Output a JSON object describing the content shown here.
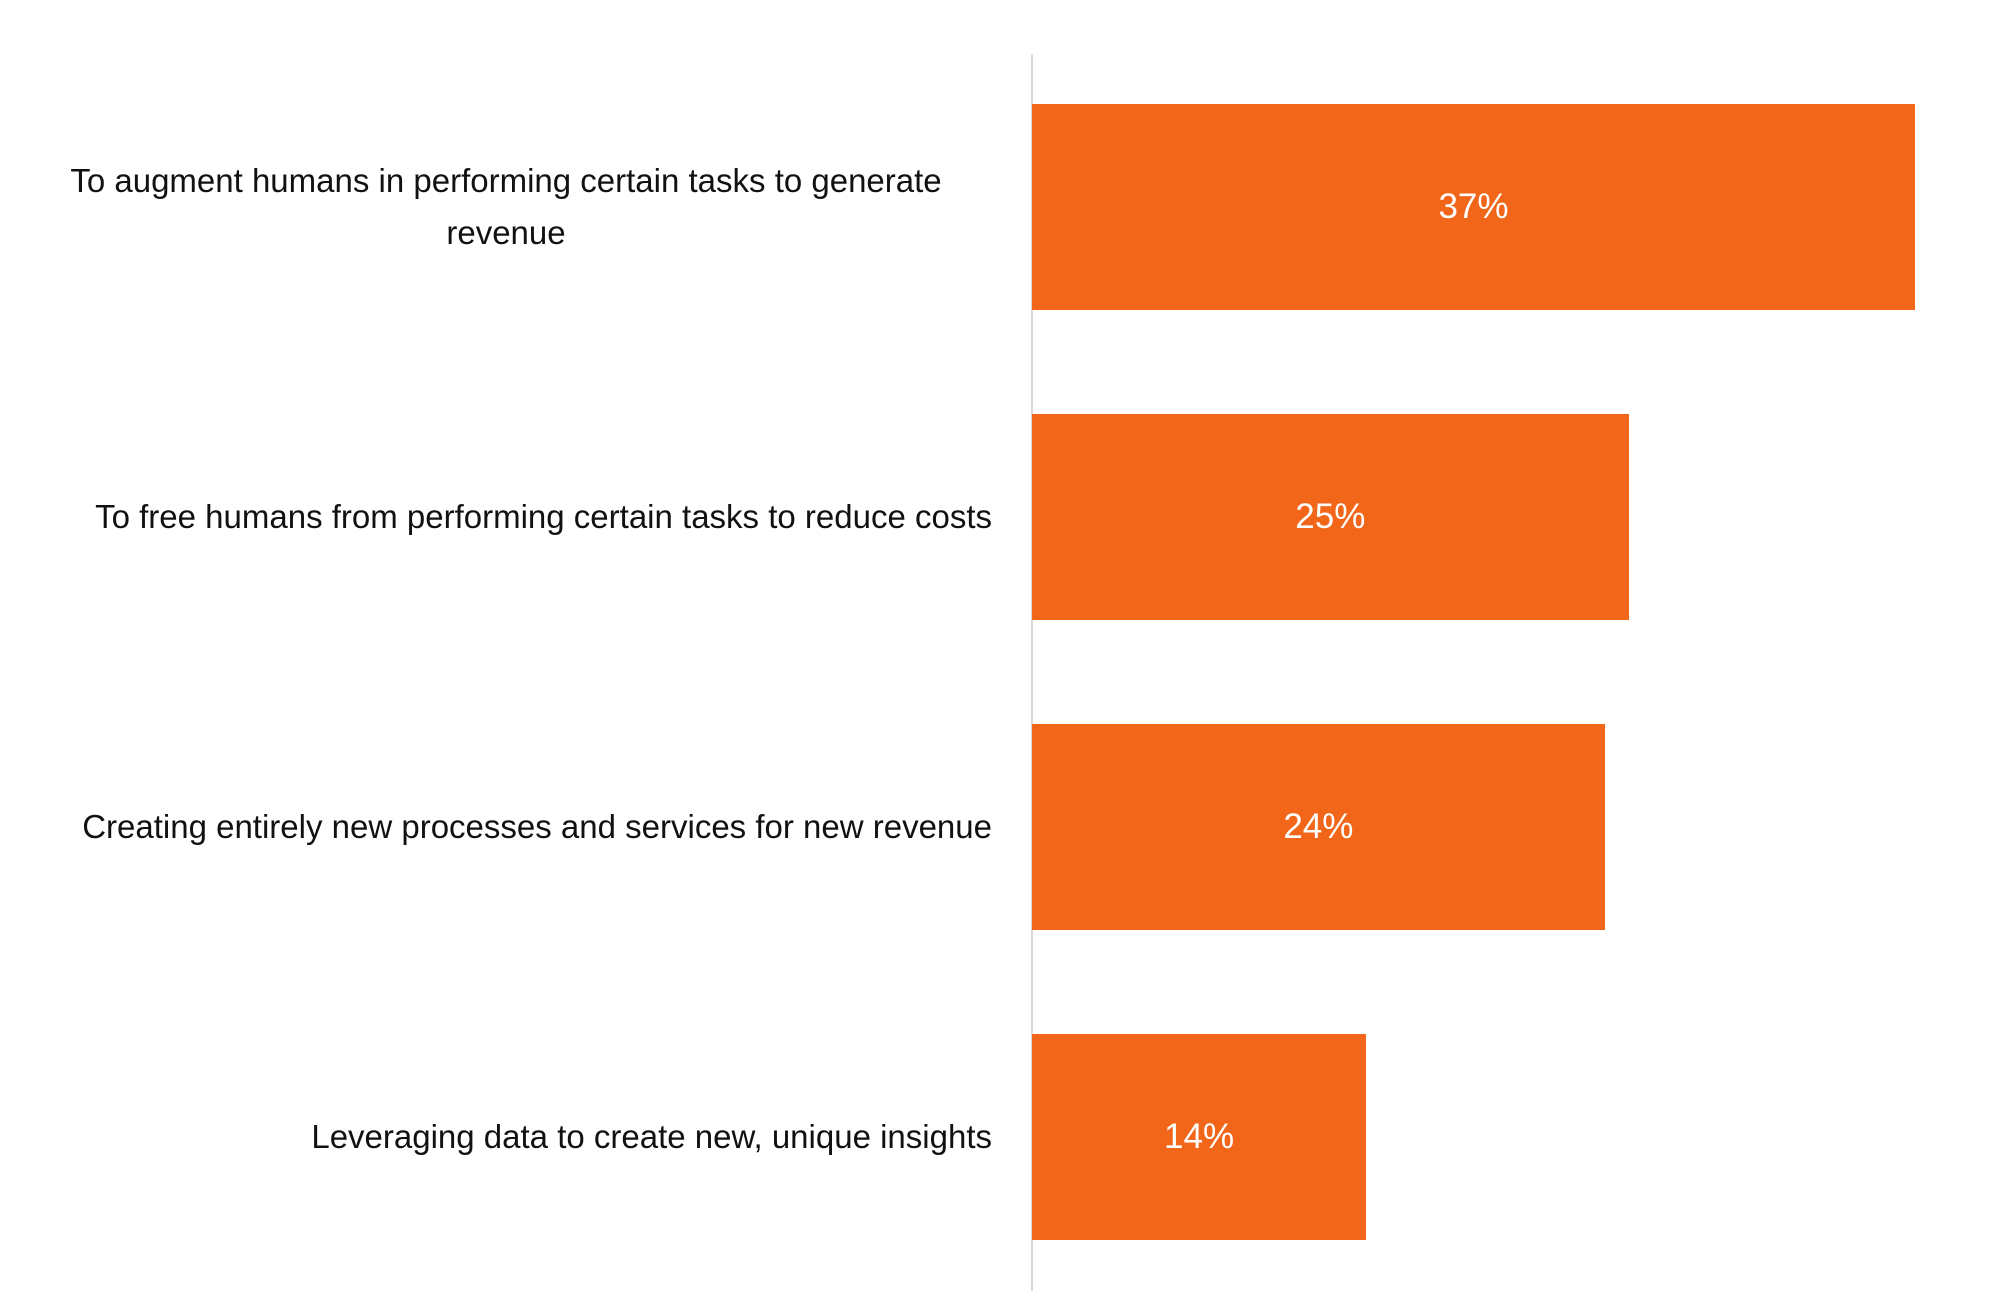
{
  "chart_data": {
    "type": "bar",
    "orientation": "horizontal",
    "categories": [
      "To augment humans in performing certain tasks to generate revenue",
      "To free humans from performing certain tasks to reduce costs",
      "Creating entirely new processes and services for new revenue",
      "Leveraging data to create new, unique insights"
    ],
    "values": [
      37,
      25,
      24,
      14
    ],
    "value_labels": [
      "37%",
      "25%",
      "24%",
      "14%"
    ],
    "color": "#f26619"
  }
}
